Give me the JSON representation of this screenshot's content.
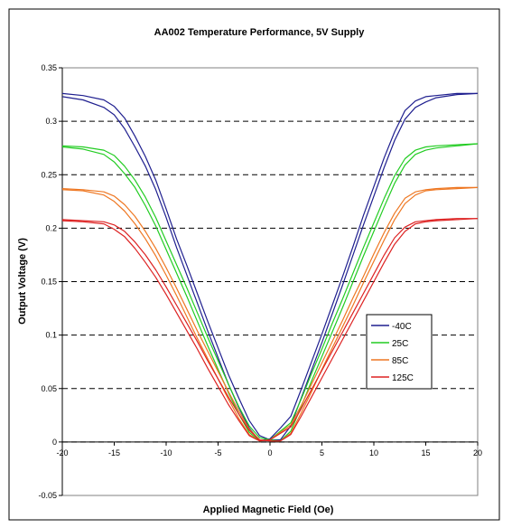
{
  "chart_data": {
    "type": "line",
    "title": "AA002 Temperature Performance, 5V Supply",
    "xlabel": "Applied Magnetic Field (Oe)",
    "ylabel": "Output Voltage (V)",
    "xlim": [
      -20,
      20
    ],
    "ylim": [
      -0.05,
      0.35
    ],
    "xticks": [
      -20,
      -15,
      -10,
      -5,
      0,
      5,
      10,
      15,
      20
    ],
    "xtick_labels": [
      "-20",
      "-15",
      "-10",
      "-5",
      "0",
      "5",
      "10",
      "15",
      "20"
    ],
    "yticks": [
      -0.05,
      0,
      0.05,
      0.1,
      0.15,
      0.2,
      0.25,
      0.3,
      0.35
    ],
    "ytick_labels": [
      "-0.05",
      "0",
      "0.05",
      "0.1",
      "0.15",
      "0.2",
      "0.25",
      "0.3",
      "0.35"
    ],
    "grid": "dashed horizontal",
    "legend_position": "right-middle",
    "series": [
      {
        "name": "-40C",
        "color": "#1f1f8f",
        "sweep_down": {
          "x": [
            -20,
            -18,
            -16,
            -15,
            -14,
            -13,
            -12,
            -11,
            -10,
            -9,
            -8,
            -7,
            -6,
            -5,
            -4,
            -3,
            -2,
            -1,
            0,
            1,
            2,
            3,
            4,
            5,
            6,
            7,
            8,
            9,
            10,
            11,
            12,
            13,
            14,
            15,
            16,
            18,
            20
          ],
          "y": [
            0.326,
            0.324,
            0.32,
            0.314,
            0.303,
            0.286,
            0.267,
            0.245,
            0.218,
            0.19,
            0.165,
            0.139,
            0.113,
            0.088,
            0.063,
            0.041,
            0.02,
            0.006,
            0.002,
            0.002,
            0.015,
            0.041,
            0.067,
            0.093,
            0.12,
            0.147,
            0.175,
            0.203,
            0.23,
            0.257,
            0.282,
            0.302,
            0.313,
            0.318,
            0.322,
            0.325,
            0.326
          ]
        },
        "sweep_up": {
          "x": [
            -20,
            -18,
            -16,
            -15,
            -14,
            -13,
            -12,
            -11,
            -10,
            -9,
            -8,
            -7,
            -6,
            -5,
            -4,
            -3,
            -2,
            -1,
            0,
            1,
            2,
            3,
            4,
            5,
            6,
            7,
            8,
            9,
            10,
            11,
            12,
            13,
            14,
            15,
            16,
            18,
            20
          ],
          "y": [
            0.323,
            0.32,
            0.313,
            0.306,
            0.293,
            0.276,
            0.258,
            0.236,
            0.21,
            0.182,
            0.156,
            0.13,
            0.104,
            0.079,
            0.054,
            0.032,
            0.013,
            0.001,
            0.003,
            0.013,
            0.024,
            0.049,
            0.075,
            0.101,
            0.128,
            0.155,
            0.183,
            0.212,
            0.239,
            0.266,
            0.29,
            0.31,
            0.319,
            0.323,
            0.324,
            0.326,
            0.326
          ]
        }
      },
      {
        "name": "25C",
        "color": "#22cc22",
        "sweep_down": {
          "x": [
            -20,
            -18,
            -16,
            -15,
            -14,
            -13,
            -12,
            -11,
            -10,
            -9,
            -8,
            -7,
            -6,
            -5,
            -4,
            -3,
            -2,
            -1,
            0,
            1,
            2,
            3,
            4,
            5,
            6,
            7,
            8,
            9,
            10,
            11,
            12,
            13,
            14,
            15,
            16,
            18,
            20
          ],
          "y": [
            0.277,
            0.276,
            0.273,
            0.268,
            0.258,
            0.245,
            0.229,
            0.21,
            0.188,
            0.166,
            0.144,
            0.121,
            0.098,
            0.076,
            0.054,
            0.033,
            0.015,
            0.004,
            0.002,
            0.001,
            0.01,
            0.033,
            0.057,
            0.08,
            0.103,
            0.126,
            0.15,
            0.174,
            0.197,
            0.22,
            0.242,
            0.259,
            0.269,
            0.273,
            0.275,
            0.277,
            0.279
          ]
        },
        "sweep_up": {
          "x": [
            -20,
            -18,
            -16,
            -15,
            -14,
            -13,
            -12,
            -11,
            -10,
            -9,
            -8,
            -7,
            -6,
            -5,
            -4,
            -3,
            -2,
            -1,
            0,
            1,
            2,
            3,
            4,
            5,
            6,
            7,
            8,
            9,
            10,
            11,
            12,
            13,
            14,
            15,
            16,
            18,
            20
          ],
          "y": [
            0.276,
            0.274,
            0.269,
            0.262,
            0.251,
            0.238,
            0.221,
            0.202,
            0.18,
            0.158,
            0.136,
            0.113,
            0.09,
            0.068,
            0.046,
            0.026,
            0.009,
            0.001,
            0.002,
            0.01,
            0.018,
            0.04,
            0.064,
            0.087,
            0.111,
            0.134,
            0.158,
            0.182,
            0.205,
            0.228,
            0.249,
            0.265,
            0.273,
            0.276,
            0.277,
            0.278,
            0.279
          ]
        }
      },
      {
        "name": "85C",
        "color": "#ee7722",
        "sweep_down": {
          "x": [
            -20,
            -18,
            -16,
            -15,
            -14,
            -13,
            -12,
            -11,
            -10,
            -9,
            -8,
            -7,
            -6,
            -5,
            -4,
            -3,
            -2,
            -1,
            0,
            1,
            2,
            3,
            4,
            5,
            6,
            7,
            8,
            9,
            10,
            11,
            12,
            13,
            14,
            15,
            16,
            18,
            20
          ],
          "y": [
            0.237,
            0.236,
            0.234,
            0.23,
            0.222,
            0.211,
            0.197,
            0.181,
            0.163,
            0.144,
            0.124,
            0.104,
            0.085,
            0.066,
            0.047,
            0.029,
            0.012,
            0.002,
            0.001,
            0.001,
            0.008,
            0.027,
            0.047,
            0.068,
            0.088,
            0.108,
            0.128,
            0.149,
            0.169,
            0.189,
            0.208,
            0.223,
            0.231,
            0.235,
            0.236,
            0.237,
            0.238
          ]
        },
        "sweep_up": {
          "x": [
            -20,
            -18,
            -16,
            -15,
            -14,
            -13,
            -12,
            -11,
            -10,
            -9,
            -8,
            -7,
            -6,
            -5,
            -4,
            -3,
            -2,
            -1,
            0,
            1,
            2,
            3,
            4,
            5,
            6,
            7,
            8,
            9,
            10,
            11,
            12,
            13,
            14,
            15,
            16,
            18,
            20
          ],
          "y": [
            0.236,
            0.235,
            0.231,
            0.225,
            0.216,
            0.204,
            0.19,
            0.174,
            0.156,
            0.137,
            0.117,
            0.097,
            0.078,
            0.059,
            0.04,
            0.022,
            0.007,
            0.001,
            0.002,
            0.009,
            0.016,
            0.034,
            0.054,
            0.074,
            0.094,
            0.114,
            0.135,
            0.155,
            0.176,
            0.196,
            0.214,
            0.228,
            0.234,
            0.236,
            0.237,
            0.238,
            0.238
          ]
        }
      },
      {
        "name": "125C",
        "color": "#dd2222",
        "sweep_down": {
          "x": [
            -20,
            -18,
            -16,
            -15,
            -14,
            -13,
            -12,
            -11,
            -10,
            -9,
            -8,
            -7,
            -6,
            -5,
            -4,
            -3,
            -2,
            -1,
            0,
            1,
            2,
            3,
            4,
            5,
            6,
            7,
            8,
            9,
            10,
            11,
            12,
            13,
            14,
            15,
            16,
            18,
            20
          ],
          "y": [
            0.208,
            0.207,
            0.206,
            0.203,
            0.197,
            0.187,
            0.175,
            0.161,
            0.145,
            0.128,
            0.111,
            0.094,
            0.076,
            0.059,
            0.042,
            0.026,
            0.011,
            0.002,
            0.001,
            0.001,
            0.007,
            0.024,
            0.042,
            0.06,
            0.078,
            0.096,
            0.114,
            0.132,
            0.15,
            0.168,
            0.185,
            0.197,
            0.204,
            0.206,
            0.207,
            0.208,
            0.209
          ]
        },
        "sweep_up": {
          "x": [
            -20,
            -18,
            -16,
            -15,
            -14,
            -13,
            -12,
            -11,
            -10,
            -9,
            -8,
            -7,
            -6,
            -5,
            -4,
            -3,
            -2,
            -1,
            0,
            1,
            2,
            3,
            4,
            5,
            6,
            7,
            8,
            9,
            10,
            11,
            12,
            13,
            14,
            15,
            16,
            18,
            20
          ],
          "y": [
            0.207,
            0.206,
            0.204,
            0.199,
            0.192,
            0.181,
            0.168,
            0.154,
            0.138,
            0.121,
            0.104,
            0.087,
            0.069,
            0.052,
            0.035,
            0.02,
            0.006,
            0.001,
            0.002,
            0.008,
            0.014,
            0.031,
            0.049,
            0.067,
            0.085,
            0.103,
            0.121,
            0.139,
            0.157,
            0.175,
            0.191,
            0.201,
            0.206,
            0.207,
            0.208,
            0.209,
            0.209
          ]
        }
      }
    ]
  }
}
